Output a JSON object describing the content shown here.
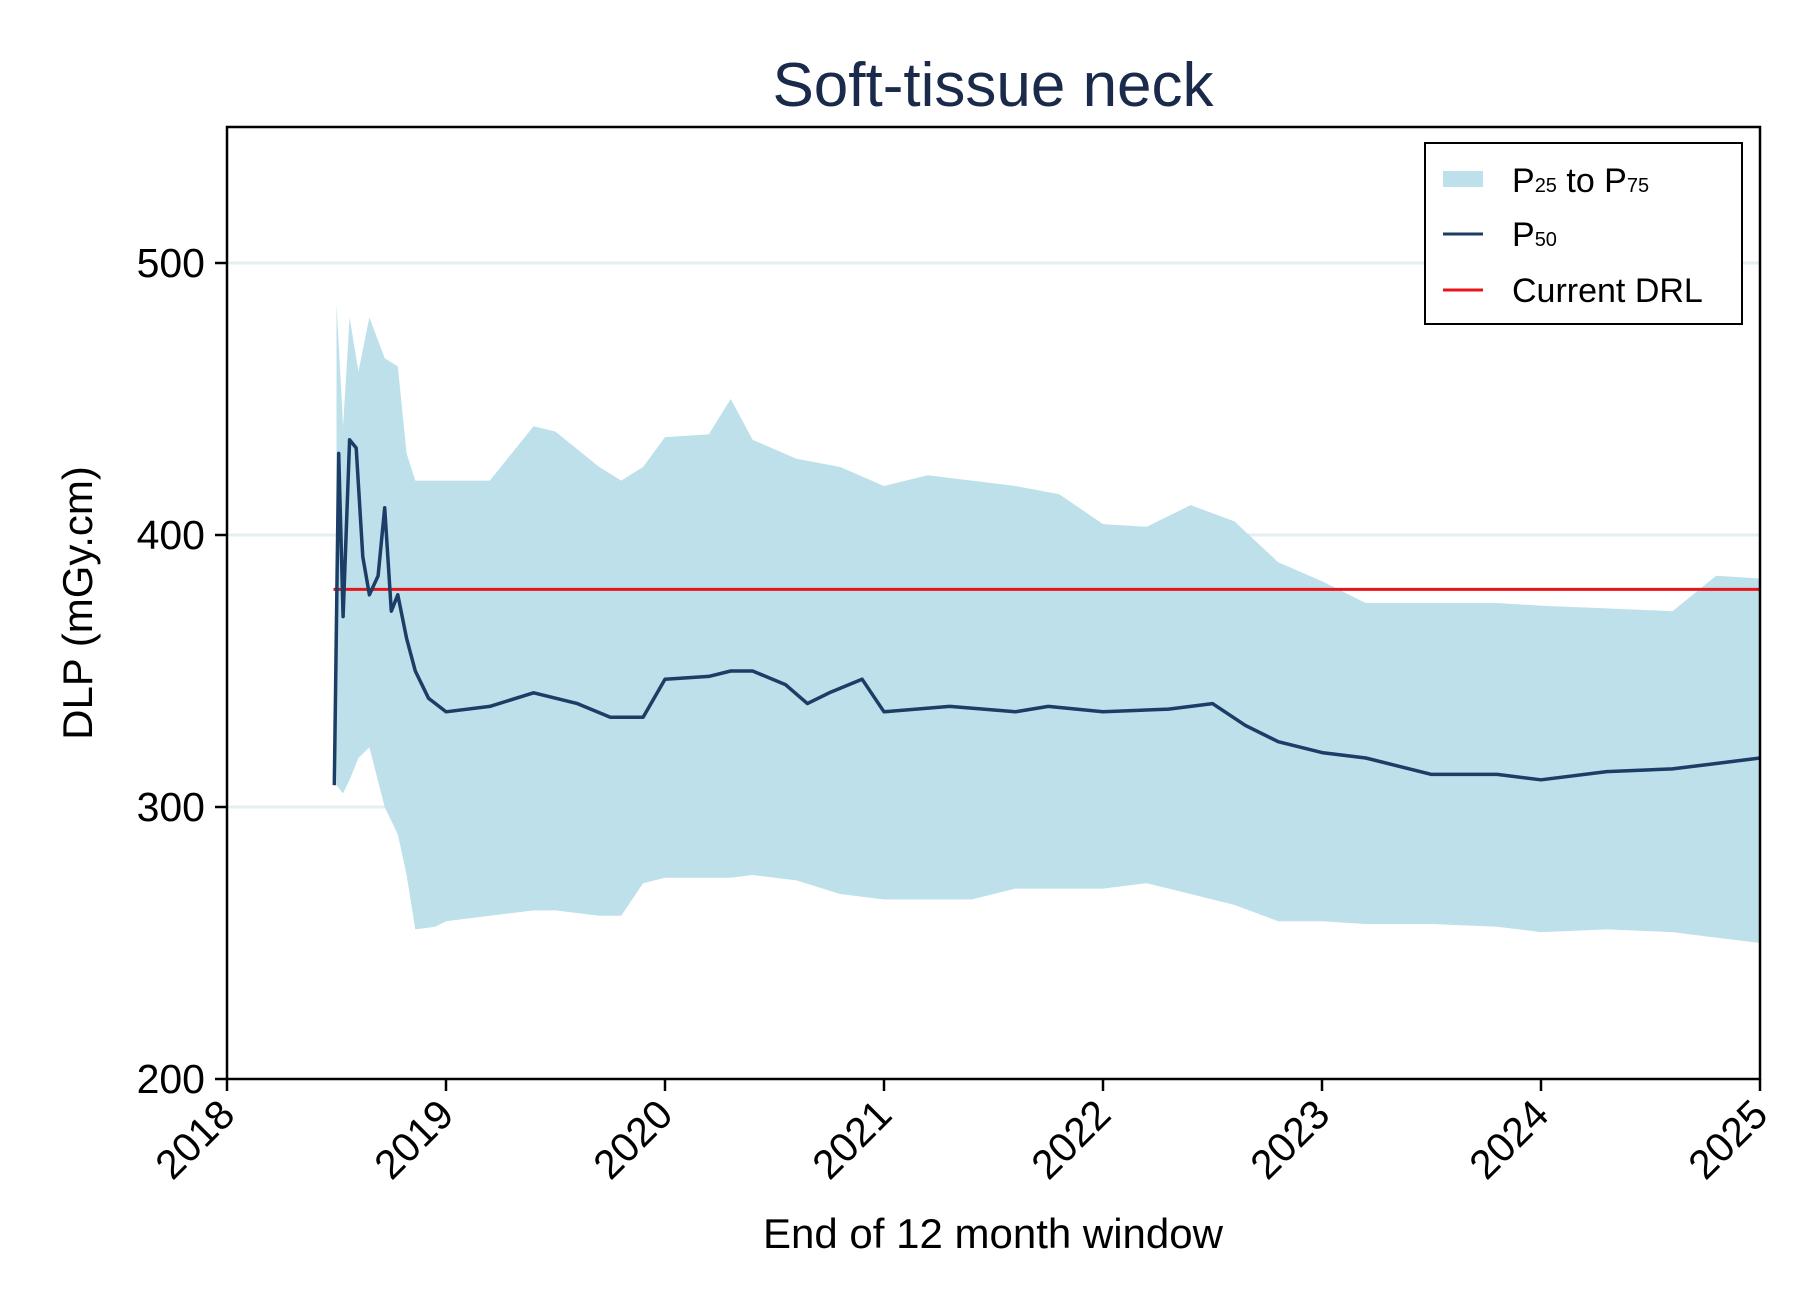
{
  "chart_data": {
    "type": "area",
    "title": "Soft-tissue neck",
    "xlabel": "End of 12 month window",
    "ylabel": "DLP (mGy.cm)",
    "xlim": [
      2018.0,
      2025.0
    ],
    "ylim": [
      200,
      550
    ],
    "x_ticks": [
      "2018",
      "2019",
      "2020",
      "2021",
      "2022",
      "2023",
      "2024",
      "2025"
    ],
    "y_ticks": [
      200,
      300,
      400,
      500
    ],
    "grid": "horizontal",
    "legend_position": "top-right",
    "legend": {
      "band": {
        "main": "P",
        "sub_lo": "25",
        "mid": " to P",
        "sub_hi": "75"
      },
      "median": {
        "main": "P",
        "sub": "50"
      },
      "drl": "Current DRL"
    },
    "colors": {
      "band": "#bde0ea",
      "median": "#1b3d66",
      "drl": "#e8141c",
      "grid": "#e3eff1"
    },
    "drl_value": 380,
    "series": [
      {
        "name": "P25 to P75",
        "kind": "band",
        "x": [
          2018.5,
          2018.53,
          2018.56,
          2018.6,
          2018.65,
          2018.72,
          2018.78,
          2018.82,
          2018.86,
          2018.95,
          2019.0,
          2019.2,
          2019.4,
          2019.5,
          2019.7,
          2019.8,
          2019.9,
          2020.0,
          2020.2,
          2020.3,
          2020.4,
          2020.6,
          2020.8,
          2021.0,
          2021.2,
          2021.4,
          2021.6,
          2021.8,
          2022.0,
          2022.2,
          2022.4,
          2022.6,
          2022.8,
          2023.0,
          2023.2,
          2023.5,
          2023.8,
          2024.0,
          2024.3,
          2024.6,
          2024.8,
          2025.0
        ],
        "upper": [
          485,
          440,
          480,
          460,
          480,
          465,
          462,
          430,
          420,
          420,
          420,
          420,
          440,
          438,
          425,
          420,
          425,
          436,
          437,
          450,
          435,
          428,
          425,
          418,
          422,
          420,
          418,
          415,
          404,
          403,
          411,
          405,
          390,
          383,
          375,
          375,
          375,
          374,
          373,
          372,
          385,
          384
        ],
        "lower": [
          308,
          305,
          310,
          318,
          322,
          300,
          290,
          275,
          255,
          256,
          258,
          260,
          262,
          262,
          260,
          260,
          272,
          274,
          274,
          274,
          275,
          273,
          268,
          266,
          266,
          266,
          270,
          270,
          270,
          272,
          268,
          264,
          258,
          258,
          257,
          257,
          256,
          254,
          255,
          254,
          252,
          250
        ]
      },
      {
        "name": "P50",
        "kind": "line",
        "x": [
          2018.49,
          2018.51,
          2018.53,
          2018.56,
          2018.59,
          2018.62,
          2018.65,
          2018.69,
          2018.72,
          2018.75,
          2018.78,
          2018.82,
          2018.86,
          2018.92,
          2019.0,
          2019.2,
          2019.4,
          2019.6,
          2019.75,
          2019.9,
          2020.0,
          2020.2,
          2020.3,
          2020.4,
          2020.55,
          2020.65,
          2020.75,
          2020.9,
          2021.0,
          2021.3,
          2021.6,
          2021.75,
          2022.0,
          2022.3,
          2022.5,
          2022.65,
          2022.8,
          2023.0,
          2023.2,
          2023.5,
          2023.8,
          2024.0,
          2024.3,
          2024.6,
          2024.8,
          2025.0
        ],
        "values": [
          308,
          430,
          370,
          435,
          432,
          392,
          378,
          385,
          410,
          372,
          378,
          362,
          350,
          340,
          335,
          337,
          342,
          338,
          333,
          333,
          347,
          348,
          350,
          350,
          345,
          338,
          342,
          347,
          335,
          337,
          335,
          337,
          335,
          336,
          338,
          330,
          324,
          320,
          318,
          312,
          312,
          310,
          313,
          314,
          316,
          318
        ]
      },
      {
        "name": "Current DRL",
        "kind": "hline",
        "value": 380
      }
    ]
  }
}
